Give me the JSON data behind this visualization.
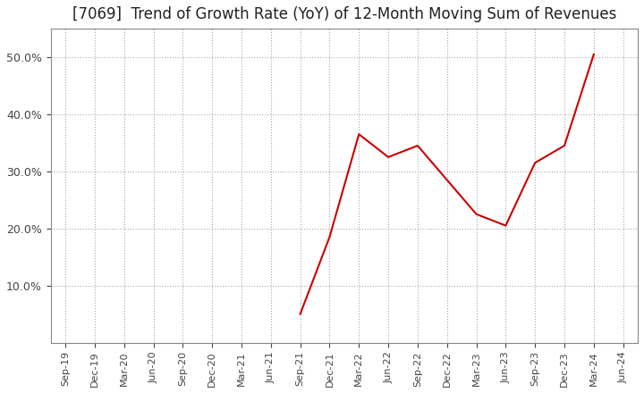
{
  "title": "[7069]  Trend of Growth Rate (YoY) of 12-Month Moving Sum of Revenues",
  "x_labels": [
    "Sep-19",
    "Dec-19",
    "Mar-20",
    "Jun-20",
    "Sep-20",
    "Dec-20",
    "Mar-21",
    "Jun-21",
    "Sep-21",
    "Dec-21",
    "Mar-22",
    "Jun-22",
    "Sep-22",
    "Dec-22",
    "Mar-23",
    "Jun-23",
    "Sep-23",
    "Dec-23",
    "Mar-24",
    "Jun-24"
  ],
  "x_values": [
    0,
    1,
    2,
    3,
    4,
    5,
    6,
    7,
    8,
    9,
    10,
    11,
    12,
    13,
    14,
    15,
    16,
    17,
    18,
    19
  ],
  "y_data": [
    null,
    null,
    null,
    null,
    null,
    null,
    null,
    null,
    5.0,
    18.5,
    36.5,
    32.5,
    34.5,
    28.5,
    22.5,
    20.5,
    31.5,
    34.5,
    50.5,
    null
  ],
  "ylim": [
    0.0,
    55.0
  ],
  "yticks": [
    10.0,
    20.0,
    30.0,
    40.0,
    50.0
  ],
  "line_color": "#cc0000",
  "background_color": "#ffffff",
  "grid_color": "#aaaaaa",
  "title_fontsize": 12,
  "figsize": [
    7.2,
    4.4
  ]
}
